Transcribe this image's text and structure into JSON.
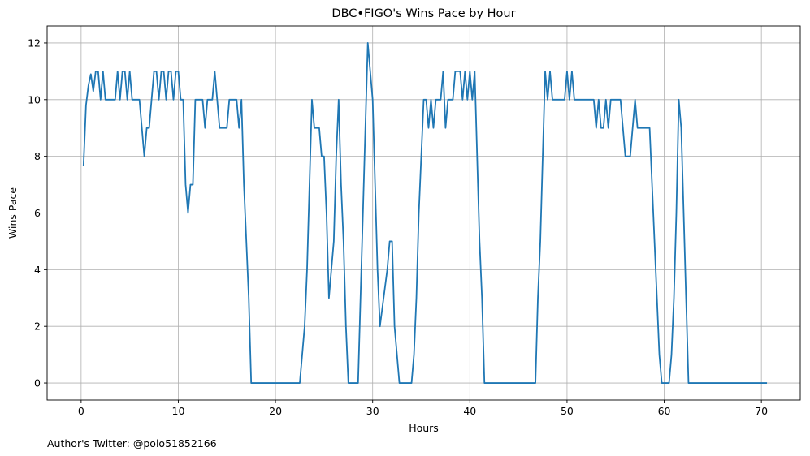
{
  "chart_data": {
    "type": "line",
    "title": "DBC•FIGO's Wins Pace by Hour",
    "xlabel": "Hours",
    "ylabel": "Wins Pace",
    "xlim": [
      -3.5,
      74
    ],
    "ylim": [
      -0.6,
      12.6
    ],
    "xticks": [
      0,
      10,
      20,
      30,
      40,
      50,
      60,
      70
    ],
    "yticks": [
      0,
      2,
      4,
      6,
      8,
      10,
      12
    ],
    "grid": true,
    "color": "#1f77b4",
    "series": [
      {
        "points": [
          [
            0.25,
            7.7
          ],
          [
            0.5,
            9.8
          ],
          [
            0.75,
            10.5
          ],
          [
            1.0,
            10.9
          ],
          [
            1.25,
            10.3
          ],
          [
            1.5,
            11
          ],
          [
            1.75,
            11
          ],
          [
            2.0,
            10
          ],
          [
            2.25,
            11
          ],
          [
            2.5,
            10
          ],
          [
            3.0,
            10
          ],
          [
            3.5,
            10
          ],
          [
            3.75,
            11
          ],
          [
            4.0,
            10
          ],
          [
            4.25,
            11
          ],
          [
            4.5,
            11
          ],
          [
            4.75,
            10
          ],
          [
            5.0,
            11
          ],
          [
            5.25,
            10
          ],
          [
            6.0,
            10
          ],
          [
            6.5,
            8
          ],
          [
            6.75,
            9
          ],
          [
            7.0,
            9
          ],
          [
            7.5,
            11
          ],
          [
            7.75,
            11
          ],
          [
            8.0,
            10
          ],
          [
            8.25,
            11
          ],
          [
            8.5,
            11
          ],
          [
            8.75,
            10
          ],
          [
            9.0,
            11
          ],
          [
            9.25,
            11
          ],
          [
            9.5,
            10
          ],
          [
            9.75,
            11
          ],
          [
            10.0,
            11
          ],
          [
            10.25,
            10
          ],
          [
            10.5,
            10
          ],
          [
            10.75,
            7
          ],
          [
            11.0,
            6
          ],
          [
            11.25,
            7
          ],
          [
            11.5,
            7
          ],
          [
            11.75,
            10
          ],
          [
            12.5,
            10
          ],
          [
            12.75,
            9
          ],
          [
            13.0,
            10
          ],
          [
            13.5,
            10
          ],
          [
            13.75,
            11
          ],
          [
            14.0,
            10
          ],
          [
            14.25,
            9
          ],
          [
            15.0,
            9
          ],
          [
            15.25,
            10
          ],
          [
            16.0,
            10
          ],
          [
            16.25,
            9
          ],
          [
            16.5,
            10
          ],
          [
            16.75,
            7
          ],
          [
            17.25,
            3
          ],
          [
            17.5,
            0
          ],
          [
            22.5,
            0
          ],
          [
            23.0,
            2
          ],
          [
            23.25,
            4
          ],
          [
            23.5,
            7
          ],
          [
            23.75,
            10
          ],
          [
            24.0,
            9
          ],
          [
            24.5,
            9
          ],
          [
            24.75,
            8
          ],
          [
            25.0,
            8
          ],
          [
            25.25,
            6
          ],
          [
            25.5,
            3
          ],
          [
            26.0,
            5
          ],
          [
            26.25,
            8
          ],
          [
            26.5,
            10
          ],
          [
            26.75,
            7
          ],
          [
            27.0,
            5
          ],
          [
            27.25,
            2
          ],
          [
            27.5,
            0
          ],
          [
            28.5,
            0
          ],
          [
            28.75,
            3
          ],
          [
            29.0,
            6
          ],
          [
            29.25,
            9
          ],
          [
            29.5,
            12
          ],
          [
            30.0,
            10
          ],
          [
            30.25,
            7
          ],
          [
            30.5,
            4
          ],
          [
            30.75,
            2
          ],
          [
            31.5,
            4
          ],
          [
            31.75,
            5
          ],
          [
            32.0,
            5
          ],
          [
            32.25,
            2
          ],
          [
            32.75,
            0
          ],
          [
            34.0,
            0
          ],
          [
            34.25,
            1
          ],
          [
            34.5,
            3
          ],
          [
            34.75,
            6
          ],
          [
            35.25,
            10
          ],
          [
            35.5,
            10
          ],
          [
            35.75,
            9
          ],
          [
            36.0,
            10
          ],
          [
            36.25,
            9
          ],
          [
            36.5,
            10
          ],
          [
            37.0,
            10
          ],
          [
            37.25,
            11
          ],
          [
            37.5,
            9
          ],
          [
            37.75,
            10
          ],
          [
            38.25,
            10
          ],
          [
            38.5,
            11
          ],
          [
            39.0,
            11
          ],
          [
            39.25,
            10
          ],
          [
            39.5,
            11
          ],
          [
            39.75,
            10
          ],
          [
            40.0,
            11
          ],
          [
            40.25,
            10
          ],
          [
            40.5,
            11
          ],
          [
            41.0,
            5
          ],
          [
            41.25,
            3
          ],
          [
            41.5,
            0
          ],
          [
            46.75,
            0
          ],
          [
            47.0,
            3
          ],
          [
            47.25,
            5
          ],
          [
            47.5,
            8
          ],
          [
            47.75,
            11
          ],
          [
            48.0,
            10
          ],
          [
            48.25,
            11
          ],
          [
            48.5,
            10
          ],
          [
            49.75,
            10
          ],
          [
            50.0,
            11
          ],
          [
            50.25,
            10
          ],
          [
            50.5,
            11
          ],
          [
            50.75,
            10
          ],
          [
            52.75,
            10
          ],
          [
            53.0,
            9
          ],
          [
            53.25,
            10
          ],
          [
            53.5,
            9
          ],
          [
            53.75,
            9
          ],
          [
            54.0,
            10
          ],
          [
            54.25,
            9
          ],
          [
            54.5,
            10
          ],
          [
            55.5,
            10
          ],
          [
            55.75,
            9
          ],
          [
            56.0,
            8
          ],
          [
            56.5,
            8
          ],
          [
            56.75,
            9
          ],
          [
            57.0,
            10
          ],
          [
            57.25,
            9
          ],
          [
            58.5,
            9
          ],
          [
            59.0,
            5
          ],
          [
            59.25,
            3
          ],
          [
            59.5,
            1
          ],
          [
            59.75,
            0
          ],
          [
            60.5,
            0
          ],
          [
            60.75,
            1
          ],
          [
            61.0,
            3
          ],
          [
            61.25,
            6
          ],
          [
            61.5,
            10
          ],
          [
            61.75,
            9
          ],
          [
            62.0,
            6
          ],
          [
            62.25,
            3
          ],
          [
            62.5,
            0
          ],
          [
            70.5,
            0
          ]
        ]
      }
    ]
  },
  "footer": {
    "credit": "Author's Twitter: @polo51852166"
  }
}
